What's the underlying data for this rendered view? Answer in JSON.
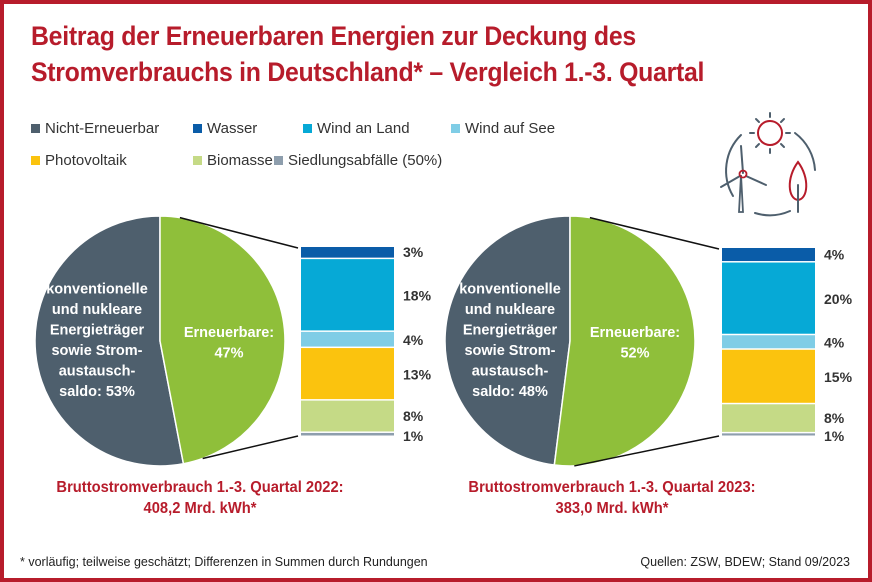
{
  "title_lines": [
    "Beitrag der Erneuerbaren Energien zur Deckung des",
    "Stromverbrauchs in Deutschland* – Vergleich 1.-3. Quartal"
  ],
  "legend": [
    {
      "label": "Nicht-Erneuerbar",
      "color": "#4e5f6d"
    },
    {
      "label": "Wasser",
      "color": "#0a5ca8"
    },
    {
      "label": "Wind an Land",
      "color": "#06a9d6"
    },
    {
      "label": "Wind auf See",
      "color": "#7fcde6"
    },
    {
      "label": "Photovoltaik",
      "color": "#fbc30e"
    },
    {
      "label": "Biomasse",
      "color": "#c5da86"
    },
    {
      "label": "Siedlungsabfälle (50%)",
      "color": "#8e9ead"
    }
  ],
  "icon": {
    "name": "renewable-energy-icon",
    "accent": "#b71c2b",
    "line": "#4e5f6d"
  },
  "chart_data": [
    {
      "type": "pie",
      "title": "Bruttostromverbrauch 1.-3. Quartal 2022",
      "total": "408,2 Mrd. kWh*",
      "caption_lines": [
        "Bruttostromverbrauch 1.-3. Quartal 2022:",
        "408,2 Mrd. kWh*"
      ],
      "slices": [
        {
          "name": "konventionelle und nukleare Energieträger sowie Stromaustauschsaldo",
          "value": 53,
          "color": "#4e5f6d",
          "label_lines": [
            "konventionelle",
            "und nukleare",
            "Energieträger",
            "sowie Strom-",
            "austausch-",
            "saldo: 53%"
          ]
        },
        {
          "name": "Erneuerbare",
          "value": 47,
          "color": "#8fbf3a",
          "label_lines": [
            "Erneuerbare:",
            "47%"
          ]
        }
      ],
      "breakdown": [
        {
          "name": "Wasser",
          "value": 3,
          "label": "3%",
          "color": "#0a5ca8"
        },
        {
          "name": "Wind an Land",
          "value": 18,
          "label": "18%",
          "color": "#06a9d6"
        },
        {
          "name": "Wind auf See",
          "value": 4,
          "label": "4%",
          "color": "#7fcde6"
        },
        {
          "name": "Photovoltaik",
          "value": 13,
          "label": "13%",
          "color": "#fbc30e"
        },
        {
          "name": "Biomasse",
          "value": 8,
          "label": "8%",
          "color": "#c5da86"
        },
        {
          "name": "Siedlungsabfälle (50%)",
          "value": 1,
          "label": "1%",
          "color": "#8e9ead"
        }
      ]
    },
    {
      "type": "pie",
      "title": "Bruttostromverbrauch 1.-3. Quartal 2023",
      "total": "383,0 Mrd. kWh*",
      "caption_lines": [
        "Bruttostromverbrauch 1.-3. Quartal 2023:",
        "383,0 Mrd. kWh*"
      ],
      "slices": [
        {
          "name": "konventionelle und nukleare Energieträger sowie Stromaustauschsaldo",
          "value": 48,
          "color": "#4e5f6d",
          "label_lines": [
            "konventionelle",
            "und nukleare",
            "Energieträger",
            "sowie Strom-",
            "austausch-",
            "saldo: 48%"
          ]
        },
        {
          "name": "Erneuerbare",
          "value": 52,
          "color": "#8fbf3a",
          "label_lines": [
            "Erneuerbare:",
            "52%"
          ]
        }
      ],
      "breakdown": [
        {
          "name": "Wasser",
          "value": 4,
          "label": "4%",
          "color": "#0a5ca8"
        },
        {
          "name": "Wind an Land",
          "value": 20,
          "label": "20%",
          "color": "#06a9d6"
        },
        {
          "name": "Wind auf See",
          "value": 4,
          "label": "4%",
          "color": "#7fcde6"
        },
        {
          "name": "Photovoltaik",
          "value": 15,
          "label": "15%",
          "color": "#fbc30e"
        },
        {
          "name": "Biomasse",
          "value": 8,
          "label": "8%",
          "color": "#c5da86"
        },
        {
          "name": "Siedlungsabfälle (50%)",
          "value": 1,
          "label": "1%",
          "color": "#8e9ead"
        }
      ]
    }
  ],
  "footnote": "* vorläufig; teilweise geschätzt; Differenzen in Summen durch Rundungen",
  "source": "Quellen: ZSW, BDEW; Stand 09/2023"
}
